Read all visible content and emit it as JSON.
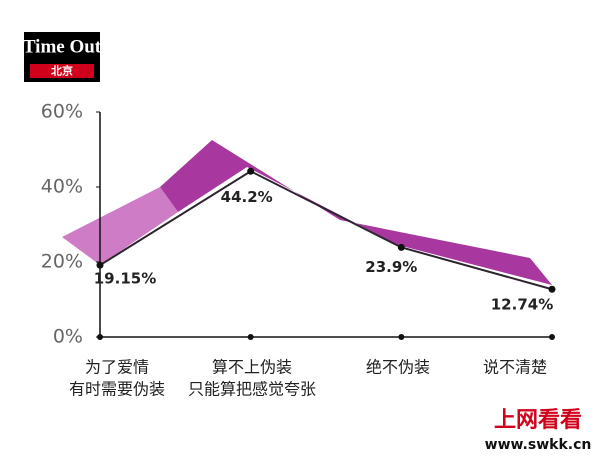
{
  "logo": {
    "name": "Time Out",
    "city": "北京"
  },
  "watermark": {
    "name": "上网看看",
    "url": "www.swkk.cn"
  },
  "chart_data": {
    "type": "line",
    "categories": [
      [
        "为了爱情",
        "有时需要伪装"
      ],
      [
        "算不上伪装",
        "只能算把感觉夸张"
      ],
      [
        "绝不伪装"
      ],
      [
        "说不清楚"
      ]
    ],
    "values": [
      19.15,
      44.2,
      23.9,
      12.74
    ],
    "value_labels": [
      "19.15%",
      "44.2%",
      "23.9%",
      "12.74%"
    ],
    "color": "#2e2430",
    "ylim": [
      0,
      60
    ],
    "yticks": [
      {
        "value": 0,
        "label": "0%"
      },
      {
        "value": 20,
        "label": "20%"
      },
      {
        "value": 40,
        "label": "40%"
      },
      {
        "value": 60,
        "label": "60%"
      }
    ]
  }
}
